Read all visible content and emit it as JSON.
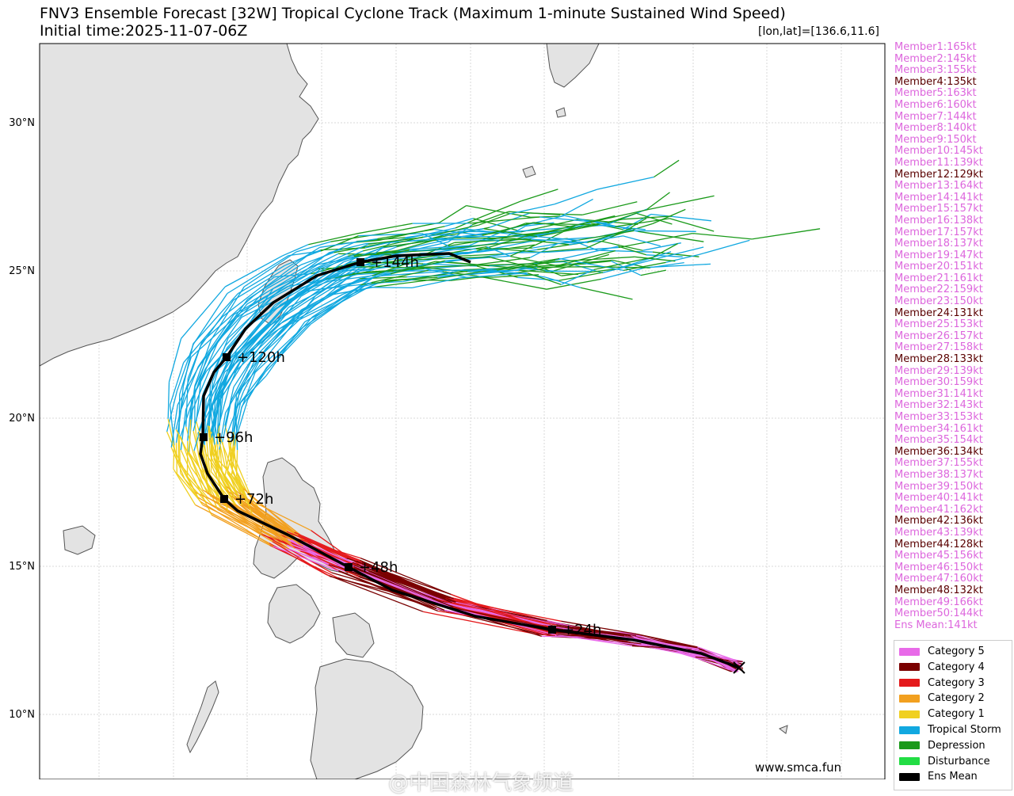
{
  "title": {
    "line1": "FNV3 Ensemble Forecast [32W] Tropical Cyclone Track (Maximum 1-minute Sustained Wind Speed)",
    "line2": "Initial time:2025-11-07-06Z",
    "coordinate_readout": "[lon,lat]=[136.6,11.6]"
  },
  "colors": {
    "cat5": "#e86ae8",
    "cat4": "#7a0000",
    "cat3": "#e41a1c",
    "cat2": "#f2a01f",
    "cat1": "#f0d020",
    "ts": "#11a8e0",
    "td": "#1a9a1a",
    "dist": "#22dd44",
    "mean": "#000000",
    "land": "#e3e3e3",
    "coast": "#555555",
    "member_cat5_text": "#dd66dd",
    "member_cat4_text": "#5a0000"
  },
  "axes": {
    "lat_labels": [
      "30°N",
      "25°N",
      "20°N",
      "15°N",
      "10°N"
    ],
    "lat_values": [
      30,
      25,
      20,
      15,
      10
    ]
  },
  "members": [
    {
      "label": "Member1:165kt",
      "category": 5
    },
    {
      "label": "Member2:145kt",
      "category": 5
    },
    {
      "label": "Member3:155kt",
      "category": 5
    },
    {
      "label": "Member4:135kt",
      "category": 4
    },
    {
      "label": "Member5:163kt",
      "category": 5
    },
    {
      "label": "Member6:160kt",
      "category": 5
    },
    {
      "label": "Member7:144kt",
      "category": 5
    },
    {
      "label": "Member8:140kt",
      "category": 5
    },
    {
      "label": "Member9:150kt",
      "category": 5
    },
    {
      "label": "Member10:145kt",
      "category": 5
    },
    {
      "label": "Member11:139kt",
      "category": 5
    },
    {
      "label": "Member12:129kt",
      "category": 4
    },
    {
      "label": "Member13:164kt",
      "category": 5
    },
    {
      "label": "Member14:141kt",
      "category": 5
    },
    {
      "label": "Member15:157kt",
      "category": 5
    },
    {
      "label": "Member16:138kt",
      "category": 5
    },
    {
      "label": "Member17:157kt",
      "category": 5
    },
    {
      "label": "Member18:137kt",
      "category": 5
    },
    {
      "label": "Member19:147kt",
      "category": 5
    },
    {
      "label": "Member20:151kt",
      "category": 5
    },
    {
      "label": "Member21:161kt",
      "category": 5
    },
    {
      "label": "Member22:159kt",
      "category": 5
    },
    {
      "label": "Member23:150kt",
      "category": 5
    },
    {
      "label": "Member24:131kt",
      "category": 4
    },
    {
      "label": "Member25:153kt",
      "category": 5
    },
    {
      "label": "Member26:157kt",
      "category": 5
    },
    {
      "label": "Member27:158kt",
      "category": 5
    },
    {
      "label": "Member28:133kt",
      "category": 4
    },
    {
      "label": "Member29:139kt",
      "category": 5
    },
    {
      "label": "Member30:159kt",
      "category": 5
    },
    {
      "label": "Member31:141kt",
      "category": 5
    },
    {
      "label": "Member32:143kt",
      "category": 5
    },
    {
      "label": "Member33:153kt",
      "category": 5
    },
    {
      "label": "Member34:161kt",
      "category": 5
    },
    {
      "label": "Member35:154kt",
      "category": 5
    },
    {
      "label": "Member36:134kt",
      "category": 4
    },
    {
      "label": "Member37:155kt",
      "category": 5
    },
    {
      "label": "Member38:137kt",
      "category": 5
    },
    {
      "label": "Member39:150kt",
      "category": 5
    },
    {
      "label": "Member40:141kt",
      "category": 5
    },
    {
      "label": "Member41:162kt",
      "category": 5
    },
    {
      "label": "Member42:136kt",
      "category": 4
    },
    {
      "label": "Member43:139kt",
      "category": 5
    },
    {
      "label": "Member44:128kt",
      "category": 4
    },
    {
      "label": "Member45:156kt",
      "category": 5
    },
    {
      "label": "Member46:150kt",
      "category": 5
    },
    {
      "label": "Member47:160kt",
      "category": 5
    },
    {
      "label": "Member48:132kt",
      "category": 4
    },
    {
      "label": "Member49:166kt",
      "category": 5
    },
    {
      "label": "Member50:144kt",
      "category": 5
    },
    {
      "label": "Ens Mean:141kt",
      "category": 5
    }
  ],
  "legend": [
    {
      "label": "Category 5",
      "color": "#e86ae8"
    },
    {
      "label": "Category 4",
      "color": "#7a0000"
    },
    {
      "label": "Category 3",
      "color": "#e41a1c"
    },
    {
      "label": "Category 2",
      "color": "#f2a01f"
    },
    {
      "label": "Category 1",
      "color": "#f0d020"
    },
    {
      "label": "Tropical Storm",
      "color": "#11a8e0"
    },
    {
      "label": "Depression",
      "color": "#1a9a1a"
    },
    {
      "label": "Disturbance",
      "color": "#22dd44"
    },
    {
      "label": "Ens Mean",
      "color": "#000000"
    }
  ],
  "mean_track_labels": [
    "+24h",
    "+48h",
    "+72h",
    "+96h",
    "+120h",
    "+144h"
  ],
  "watermark": "www.smca.fun",
  "watermark_cn": "@中国森林气象频道"
}
